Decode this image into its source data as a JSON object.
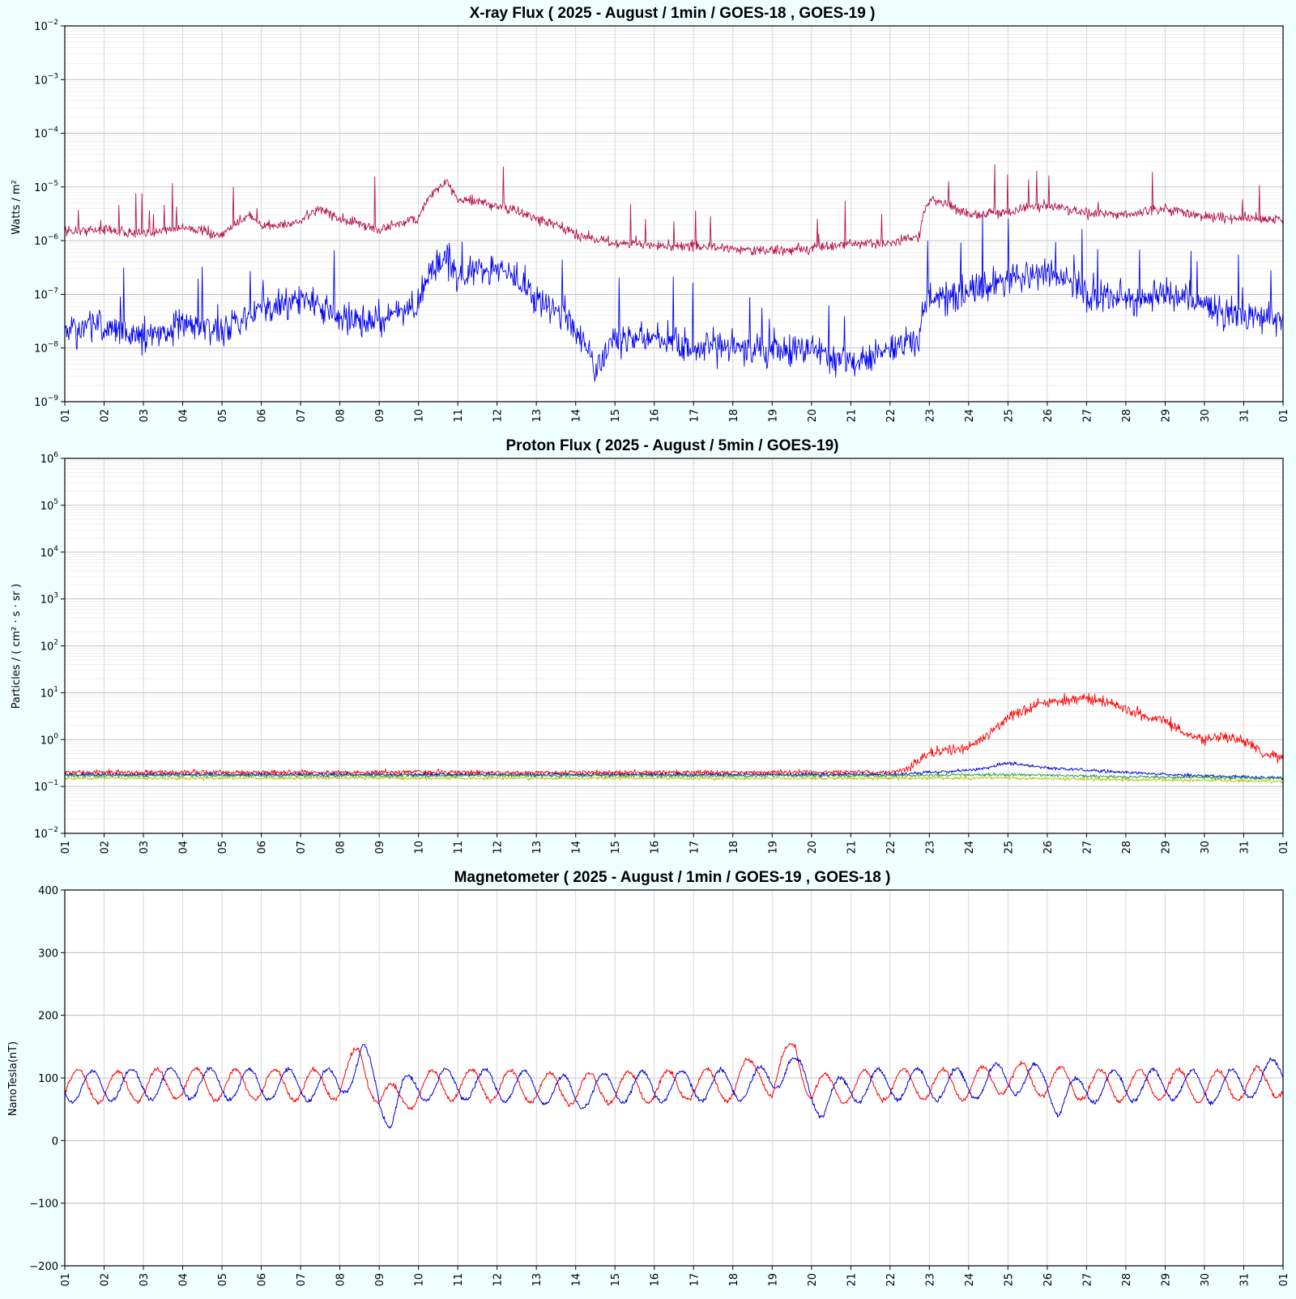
{
  "chart_data": [
    {
      "type": "line",
      "title": "X-ray Flux ( 2025 - August / 1min / GOES-18 , GOES-19 )",
      "ylabel": "Watts / m²",
      "yscale": "log",
      "ylim": [
        1e-09,
        0.01
      ],
      "yticks": [
        {
          "base": "10",
          "exp": "−9"
        },
        {
          "base": "10",
          "exp": "−8"
        },
        {
          "base": "10",
          "exp": "−7"
        },
        {
          "base": "10",
          "exp": "−6"
        },
        {
          "base": "10",
          "exp": "−5"
        },
        {
          "base": "10",
          "exp": "−4"
        },
        {
          "base": "10",
          "exp": "−3"
        },
        {
          "base": "10",
          "exp": "−2"
        }
      ],
      "xlim": [
        1,
        32
      ],
      "xticks": [
        "01",
        "02",
        "03",
        "04",
        "05",
        "06",
        "07",
        "08",
        "09",
        "10",
        "11",
        "12",
        "13",
        "14",
        "15",
        "16",
        "17",
        "18",
        "19",
        "20",
        "21",
        "22",
        "23",
        "24",
        "25",
        "26",
        "27",
        "28",
        "29",
        "30",
        "31",
        "01"
      ],
      "grid": true,
      "series": [
        {
          "color": "#b5124c",
          "x": [
            1,
            2,
            3,
            4,
            5,
            5.7,
            6,
            7,
            7.5,
            8,
            9,
            10,
            10.7,
            11,
            12,
            13,
            14,
            15,
            16,
            17,
            18,
            19,
            20,
            21,
            22,
            22.75,
            23,
            24,
            25,
            26,
            27,
            28,
            29,
            30,
            31,
            32
          ],
          "y": [
            1.5e-06,
            1.6e-06,
            1.3e-06,
            1.8e-06,
            1.2e-06,
            3e-06,
            1.8e-06,
            2.2e-06,
            4e-06,
            2.5e-06,
            1.6e-06,
            2.6e-06,
            1.2e-05,
            6e-06,
            4.5e-06,
            2.5e-06,
            1.3e-06,
            9e-07,
            8e-07,
            8e-07,
            7e-07,
            6.5e-07,
            7e-07,
            9e-07,
            9e-07,
            1.2e-06,
            6e-06,
            3e-06,
            3.5e-06,
            4.5e-06,
            3.2e-06,
            3e-06,
            4e-06,
            2.8e-06,
            2.5e-06,
            2.5e-06
          ]
        },
        {
          "color": "#0000ee",
          "x": [
            1,
            2,
            3,
            4,
            5,
            6,
            7,
            8,
            9,
            10,
            10.7,
            11,
            12,
            13,
            14,
            14.5,
            15,
            16,
            17,
            18,
            19,
            20,
            21,
            22,
            22.75,
            23,
            24,
            25,
            26,
            27,
            28,
            29,
            30,
            31,
            32
          ],
          "y": [
            2e-08,
            2.5e-08,
            1.5e-08,
            3e-08,
            2e-08,
            5e-08,
            8e-08,
            4e-08,
            3e-08,
            6e-08,
            5e-07,
            2e-07,
            3e-07,
            8e-08,
            2e-08,
            3e-09,
            1.5e-08,
            1.5e-08,
            1e-08,
            1e-08,
            8e-09,
            1e-08,
            5e-09,
            1e-08,
            1.5e-08,
            8e-08,
            1e-07,
            2e-07,
            2.5e-07,
            1e-07,
            8e-08,
            1e-07,
            6e-08,
            4e-08,
            3e-08
          ]
        }
      ]
    },
    {
      "type": "line",
      "title": "Proton Flux ( 2025 - August / 5min / GOES-19)",
      "ylabel": "Particles / ( cm² · s · sr )",
      "yscale": "log",
      "ylim": [
        0.01,
        1000000.0
      ],
      "yticks": [
        {
          "base": "10",
          "exp": "−2"
        },
        {
          "base": "10",
          "exp": "−1"
        },
        {
          "base": "10",
          "exp": "0"
        },
        {
          "base": "10",
          "exp": "1"
        },
        {
          "base": "10",
          "exp": "2"
        },
        {
          "base": "10",
          "exp": "3"
        },
        {
          "base": "10",
          "exp": "4"
        },
        {
          "base": "10",
          "exp": "5"
        },
        {
          "base": "10",
          "exp": "6"
        }
      ],
      "xlim": [
        1,
        32
      ],
      "xticks": [
        "01",
        "02",
        "03",
        "04",
        "05",
        "06",
        "07",
        "08",
        "09",
        "10",
        "11",
        "12",
        "13",
        "14",
        "15",
        "16",
        "17",
        "18",
        "19",
        "20",
        "21",
        "22",
        "23",
        "24",
        "25",
        "26",
        "27",
        "28",
        "29",
        "30",
        "31",
        "01"
      ],
      "grid": true,
      "series": [
        {
          "color": "#ff0000",
          "x": [
            1,
            22,
            22.5,
            23,
            23.5,
            24,
            24.5,
            25,
            25.5,
            26,
            26.5,
            27,
            27.5,
            28,
            28.5,
            29,
            29.5,
            30,
            30.5,
            31,
            31.5,
            32
          ],
          "y": [
            0.2,
            0.2,
            0.25,
            0.5,
            0.6,
            0.7,
            1.2,
            3.0,
            4.5,
            6.5,
            7.0,
            7.5,
            6.5,
            4.5,
            3.0,
            2.5,
            1.2,
            1.0,
            1.2,
            0.9,
            0.5,
            0.4
          ]
        },
        {
          "color": "#0000cc",
          "x": [
            1,
            22,
            23,
            24,
            24.5,
            25,
            25.5,
            26,
            27,
            28,
            29,
            30,
            31,
            32
          ],
          "y": [
            0.18,
            0.18,
            0.2,
            0.22,
            0.25,
            0.32,
            0.28,
            0.25,
            0.22,
            0.2,
            0.18,
            0.17,
            0.16,
            0.15
          ]
        },
        {
          "color": "#1a9a4a",
          "x": [
            1,
            22,
            25,
            28,
            32
          ],
          "y": [
            0.17,
            0.17,
            0.18,
            0.16,
            0.15
          ]
        },
        {
          "color": "#b8c400",
          "x": [
            1,
            22,
            25,
            28,
            32
          ],
          "y": [
            0.15,
            0.15,
            0.15,
            0.14,
            0.13
          ]
        }
      ]
    },
    {
      "type": "line",
      "title": "Magnetometer ( 2025 - August / 1min / GOES-19 , GOES-18 )",
      "ylabel": "NanoTesla(nT)",
      "yscale": "linear",
      "ylim": [
        -200,
        400
      ],
      "yticks": [
        {
          "base": "−200"
        },
        {
          "base": "−100"
        },
        {
          "base": "0"
        },
        {
          "base": "100"
        },
        {
          "base": "200"
        },
        {
          "base": "300"
        },
        {
          "base": "400"
        }
      ],
      "xlim": [
        1,
        32
      ],
      "xticks": [
        "01",
        "02",
        "03",
        "04",
        "05",
        "06",
        "07",
        "08",
        "09",
        "10",
        "11",
        "12",
        "13",
        "14",
        "15",
        "16",
        "17",
        "18",
        "19",
        "20",
        "21",
        "22",
        "23",
        "24",
        "25",
        "26",
        "27",
        "28",
        "29",
        "30",
        "31",
        "01"
      ],
      "grid": true,
      "series": [
        {
          "color": "#ff0000",
          "phase": 0.0,
          "x": [
            1,
            2,
            3,
            4,
            5,
            6,
            7,
            8,
            8.5,
            9,
            9.5,
            10,
            11,
            12,
            13,
            14,
            15,
            16,
            17,
            18,
            18.7,
            19,
            19.6,
            20,
            21,
            22,
            23,
            24,
            25,
            26,
            27,
            28,
            29,
            30,
            31,
            32
          ],
          "y": [
            90,
            85,
            88,
            92,
            88,
            90,
            88,
            90,
            130,
            75,
            60,
            85,
            90,
            88,
            85,
            82,
            85,
            85,
            90,
            88,
            120,
            85,
            150,
            80,
            85,
            90,
            90,
            90,
            100,
            95,
            88,
            88,
            90,
            85,
            90,
            95
          ]
        },
        {
          "color": "#0000dd",
          "phase": 0.35,
          "x": [
            1,
            2,
            3,
            4,
            5,
            6,
            7,
            8,
            8.6,
            9,
            9.3,
            9.6,
            10,
            11,
            12,
            13,
            14,
            15,
            16,
            17,
            18,
            19,
            19.4,
            20,
            20.3,
            21,
            22,
            23,
            24,
            25,
            26,
            26.3,
            27,
            28,
            29,
            30,
            31,
            32
          ],
          "y": [
            85,
            88,
            90,
            92,
            90,
            90,
            88,
            90,
            135,
            70,
            40,
            75,
            88,
            90,
            88,
            85,
            75,
            85,
            85,
            88,
            88,
            95,
            130,
            75,
            60,
            85,
            90,
            90,
            90,
            100,
            95,
            60,
            85,
            88,
            90,
            85,
            90,
            110
          ]
        }
      ]
    }
  ]
}
